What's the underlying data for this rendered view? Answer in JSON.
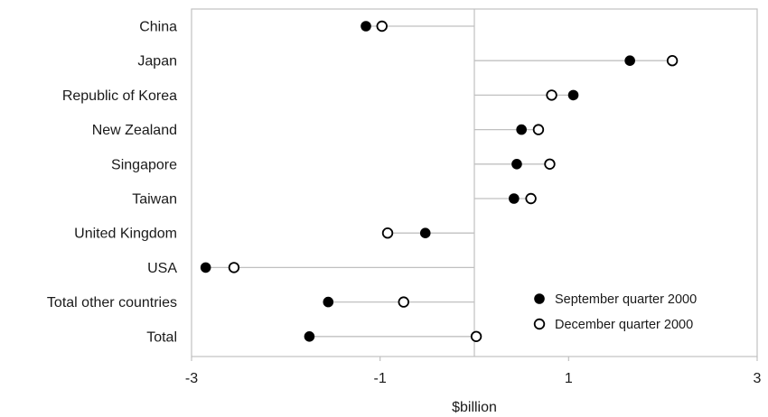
{
  "chart_data": {
    "type": "scatter",
    "subtype": "dot-plot",
    "categories": [
      "China",
      "Japan",
      "Republic of Korea",
      "New Zealand",
      "Singapore",
      "Taiwan",
      "United Kingdom",
      "USA",
      "Total other countries",
      "Total"
    ],
    "series": [
      {
        "name": "September quarter 2000",
        "marker": "filled-circle",
        "values": [
          -1.15,
          1.65,
          1.05,
          0.5,
          0.45,
          0.42,
          -0.52,
          -2.85,
          -1.55,
          -1.75
        ]
      },
      {
        "name": "December quarter 2000",
        "marker": "open-circle",
        "values": [
          -0.98,
          2.1,
          0.82,
          0.68,
          0.8,
          0.6,
          -0.92,
          -2.55,
          -0.75,
          0.02
        ]
      }
    ],
    "xlabel": "$billion",
    "ylabel": "",
    "xlim": [
      -3,
      3
    ],
    "xticks": [
      "-3",
      "-1",
      "1",
      "3"
    ],
    "grid": false,
    "legend_position": "bottom-right",
    "colors": {
      "marker": "#000000",
      "connector": "#c0c0c0",
      "frame": "#c0c0c0"
    }
  }
}
